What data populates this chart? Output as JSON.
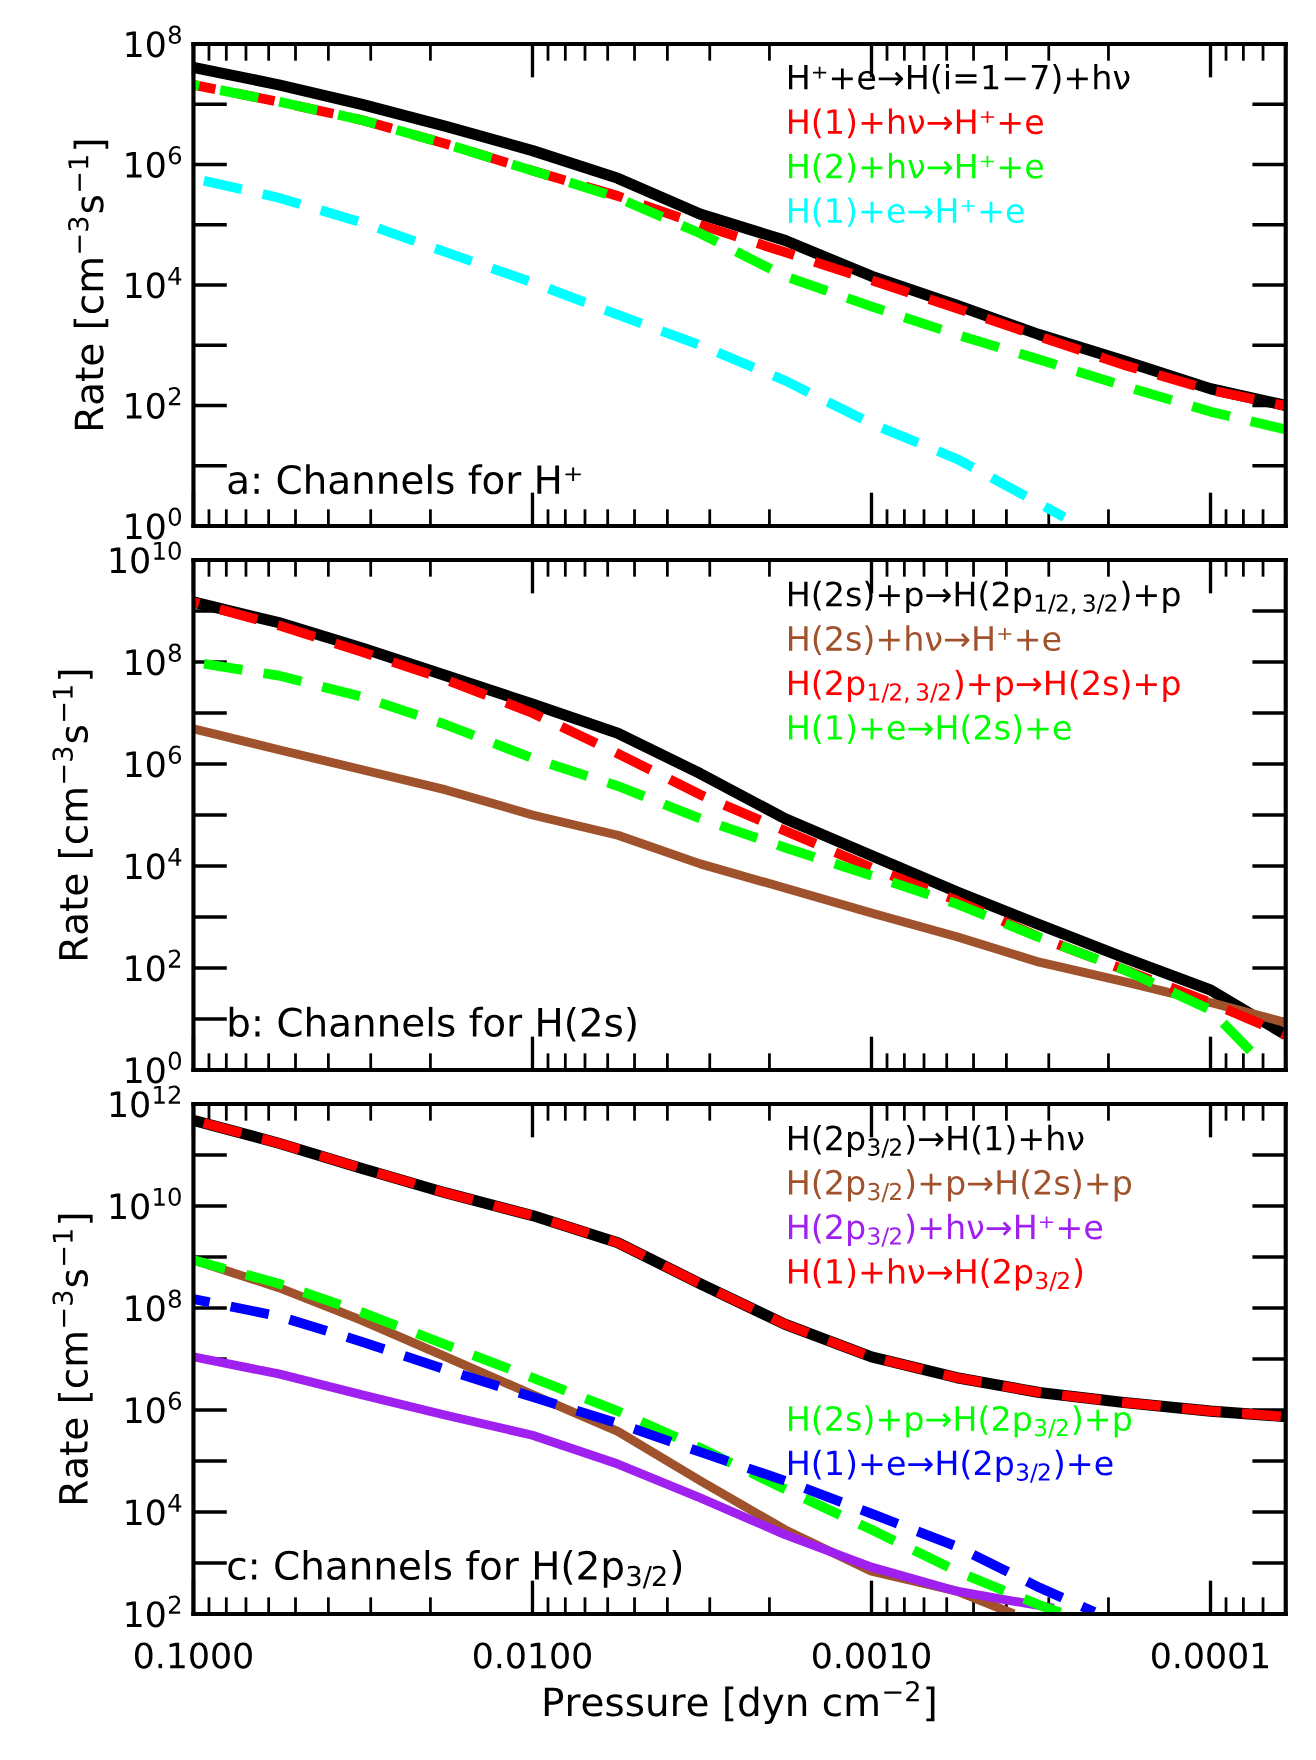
{
  "chart_data": [
    {
      "type": "line",
      "ylabel": "Rate [cm$^{−3}$s$^{−1}$]",
      "log": "xy",
      "legend": [
        "top right"
      ],
      "tick_labels": "y",
      "annotations": [
        "a: Channels for H⁺"
      ],
      "x": [
        0.1,
        0.056,
        0.032,
        0.018,
        0.01,
        0.0056,
        0.0032,
        0.0018,
        0.001,
        0.00056,
        0.00032,
        0.00018,
        0.0001,
        6e-05
      ],
      "xlim": [
        0.1,
        6e-05
      ],
      "ylim": [
        1,
        100000000
      ],
      "xticks": [
        {
          "value": 0.1,
          "label": null
        },
        {
          "value": 0.01,
          "label": null
        },
        {
          "value": 0.001,
          "label": null
        },
        {
          "value": 0.0001,
          "label": null
        }
      ],
      "yticks": [
        {
          "value": 1,
          "label": "10$^{0}$"
        },
        {
          "value": 100,
          "label": "10$^{2}$"
        },
        {
          "value": 10000,
          "label": "10$^{4}$"
        },
        {
          "value": 1000000,
          "label": "10$^{6}$"
        },
        {
          "value": 100000000,
          "label": "10$^{8}$"
        }
      ],
      "series": [
        {
          "name": "H⁺+e→H(i=1−7)+hν",
          "color": "#000000",
          "line_style": "solid",
          "values": [
            41000000,
            21000000,
            10000000,
            4300000,
            1700000,
            590000,
            150000,
            55000,
            14000,
            4600,
            1500,
            550,
            190,
            100
          ]
        },
        {
          "name": "H(1)+hν→H⁺+e",
          "color": "#ff0000",
          "line_style": "dashed",
          "values": [
            21000000,
            11000000,
            5500000,
            2200000,
            790000,
            300000,
            100000,
            35000,
            12000,
            4100,
            1400,
            470,
            180,
            98
          ]
        },
        {
          "name": "H(2)+hν→H⁺+e",
          "color": "#00ff00",
          "line_style": "dashed",
          "values": [
            21000000,
            11000000,
            5500000,
            2200000,
            790000,
            280000,
            72000,
            14000,
            4400,
            1500,
            580,
            210,
            79,
            40
          ]
        },
        {
          "name": "H(1)+e→H⁺+e",
          "color": "#00ffff",
          "line_style": "dashed",
          "x": [
            0.1,
            0.056,
            0.032,
            0.018,
            0.01,
            0.0056,
            0.0032,
            0.0018,
            0.001,
            0.00056,
            0.00027
          ],
          "values": [
            590000,
            280000,
            110000,
            35000,
            11000,
            3200,
            1000,
            260,
            50,
            13,
            1.4
          ]
        }
      ]
    },
    {
      "type": "line",
      "ylabel": "Rate [cm$^{−3}$s$^{−1}$]",
      "log": "xy",
      "legend": [
        "top right"
      ],
      "tick_labels": "y",
      "annotations": [
        "b: Channels for H(2s)"
      ],
      "x": [
        0.1,
        0.056,
        0.032,
        0.018,
        0.01,
        0.0056,
        0.0032,
        0.0018,
        0.001,
        0.00056,
        0.00032,
        0.00018,
        0.0001,
        6e-05
      ],
      "xlim": [
        0.1,
        6e-05
      ],
      "ylim": [
        1,
        10000000000
      ],
      "xticks": [
        {
          "value": 0.1,
          "label": null
        },
        {
          "value": 0.01,
          "label": null
        },
        {
          "value": 0.001,
          "label": null
        },
        {
          "value": 0.0001,
          "label": null
        }
      ],
      "yticks": [
        {
          "value": 1,
          "label": "10$^{0}$"
        },
        {
          "value": 100,
          "label": "10$^{2}$"
        },
        {
          "value": 10000,
          "label": "10$^{4}$"
        },
        {
          "value": 1000000,
          "label": "10$^{6}$"
        },
        {
          "value": 100000000,
          "label": "10$^{8}$"
        },
        {
          "value": 10000000000,
          "label": "10$^{10}$"
        }
      ],
      "series": [
        {
          "name": "H(2s)+p→H(2p$_{1/2,3/2}$)+p",
          "color": "#000000",
          "line_style": "solid",
          "values": [
            1500000000,
            590000000,
            190000000,
            54000000,
            15000000,
            4000000,
            650000,
            85000,
            16000,
            3100,
            710,
            160,
            37,
            4.9
          ]
        },
        {
          "name": "H(2s)+hν→H⁺+e",
          "color": "#a0522d",
          "line_style": "solid",
          "values": [
            4900000,
            1900000,
            780000,
            310000,
            100000,
            40000,
            11000,
            3700,
            1200,
            410,
            130,
            54,
            21,
            8.5
          ]
        },
        {
          "name": "H(2p$_{1/2,3/2}$)+p→H(2s)+p",
          "color": "#ff0000",
          "line_style": "dashed",
          "values": [
            1500000000,
            520000000,
            160000000,
            45000000,
            10000000,
            1600000,
            250000,
            49000,
            9300,
            2100,
            400,
            93,
            21,
            4.9
          ]
        },
        {
          "name": "H(1)+e→H(2s)+e",
          "color": "#00ff00",
          "line_style": "dashed",
          "x": [
            0.1,
            0.056,
            0.032,
            0.018,
            0.01,
            0.0056,
            0.0032,
            0.0018,
            0.001,
            0.00056,
            0.00032,
            0.00018,
            0.0001,
            7.2e-05
          ],
          "values": [
            100000000,
            54000000,
            21000000,
            5900000,
            1300000,
            370000,
            85000,
            23000,
            6500,
            1800,
            400,
            93,
            15,
            1.6
          ]
        }
      ]
    },
    {
      "type": "line",
      "ylabel": "Rate [cm$^{−3}$s$^{−1}$]",
      "xlabel": "Pressure [dyn cm$^{−2}$]",
      "log": "xy",
      "legend": [
        "top right",
        "right"
      ],
      "annotations": [
        "c: Channels for H(2p$_{3/2}$)"
      ],
      "x": [
        0.1,
        0.056,
        0.032,
        0.018,
        0.01,
        0.0056,
        0.0032,
        0.0018,
        0.001,
        0.00056,
        0.00032,
        0.00018,
        0.0001,
        6e-05
      ],
      "xlim": [
        0.1,
        6e-05
      ],
      "ylim": [
        100,
        1000000000000
      ],
      "xticks": [
        {
          "value": 0.1,
          "label": "0.1000"
        },
        {
          "value": 0.01,
          "label": "0.0100"
        },
        {
          "value": 0.001,
          "label": "0.0010"
        },
        {
          "value": 0.0001,
          "label": "0.0001"
        }
      ],
      "yticks": [
        {
          "value": 100,
          "label": "10$^{2}$"
        },
        {
          "value": 10000,
          "label": "10$^{4}$"
        },
        {
          "value": 1000000,
          "label": "10$^{6}$"
        },
        {
          "value": 100000000,
          "label": "10$^{8}$"
        },
        {
          "value": 10000000000,
          "label": "10$^{10}$"
        },
        {
          "value": 1000000000000,
          "label": "10$^{12}$"
        }
      ],
      "series": [
        {
          "name": "H(2p$_{3/2}$)→H(1)+hν",
          "color": "#000000",
          "line_style": "solid",
          "values": [
            480000000000,
            170000000000,
            55000000000,
            18000000000,
            6500000000,
            1900000000,
            300000000,
            48000000,
            11000000,
            4300000,
            2200000,
            1400000,
            950000,
            740000
          ]
        },
        {
          "name": "H(2p$_{3/2}$)+p→H(2s)+p",
          "color": "#a0522d",
          "line_style": "solid",
          "x": [
            0.1,
            0.056,
            0.032,
            0.018,
            0.01,
            0.0056,
            0.0032,
            0.0018,
            0.001,
            0.00056,
            0.00038
          ],
          "values": [
            870000000,
            250000000,
            58000000,
            11000000,
            2000000,
            380000,
            41000,
            4500,
            690,
            280,
            100
          ]
        },
        {
          "name": "H(2p$_{3/2}$)+hν→H⁺+e",
          "color": "#a020f0",
          "line_style": "solid",
          "x": [
            0.1,
            0.056,
            0.032,
            0.018,
            0.01,
            0.0056,
            0.0032,
            0.0018,
            0.001,
            0.00056,
            0.00029
          ],
          "values": [
            11000000,
            5100000,
            2000000,
            790000,
            320000,
            87000,
            19000,
            3600,
            830,
            280,
            130
          ]
        },
        {
          "name": "H(1)+hν→H(2p$_{3/2}$)",
          "color": "#ff0000",
          "line_style": "dashed",
          "values": [
            480000000000,
            170000000000,
            55000000000,
            18000000000,
            6500000000,
            1900000000,
            300000000,
            48000000,
            11000000,
            4300000,
            2200000,
            1400000,
            950000,
            740000
          ]
        },
        {
          "name": "H(2s)+p→H(2p$_{3/2}$)+p",
          "color": "#00ff00",
          "line_style": "dashed",
          "x": [
            0.1,
            0.056,
            0.032,
            0.018,
            0.01,
            0.0056,
            0.0032,
            0.0018,
            0.001,
            0.00056,
            0.00032,
            0.00027
          ],
          "values": [
            870000000,
            300000000,
            83000000,
            19000000,
            4300000,
            950000,
            180000,
            28000,
            4500,
            690,
            150,
            100
          ]
        },
        {
          "name": "H(1)+e→H(2p$_{3/2}$)+e",
          "color": "#0000ff",
          "line_style": "dashed",
          "x": [
            0.1,
            0.056,
            0.032,
            0.018,
            0.01,
            0.0056,
            0.0032,
            0.0018,
            0.001,
            0.00056,
            0.00032,
            0.00022
          ],
          "values": [
            150000000,
            69000000,
            22000000,
            6200000,
            1800000,
            550000,
            150000,
            41000,
            9300,
            2100,
            330,
            110
          ]
        }
      ]
    }
  ]
}
